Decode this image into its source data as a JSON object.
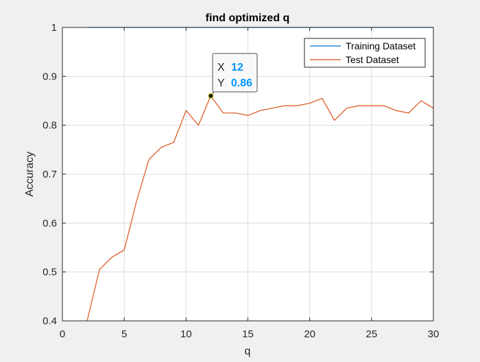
{
  "chart_data": {
    "type": "line",
    "title": "find optimized q",
    "xlabel": "q",
    "ylabel": "Accuracy",
    "xlim": [
      0,
      30
    ],
    "ylim": [
      0.4,
      1
    ],
    "xticks": [
      0,
      5,
      10,
      15,
      20,
      25,
      30
    ],
    "yticks": [
      0.4,
      0.5,
      0.6,
      0.7,
      0.8,
      0.9,
      1
    ],
    "xtick_labels": [
      "0",
      "5",
      "10",
      "15",
      "20",
      "25",
      "30"
    ],
    "ytick_labels": [
      "0.4",
      "0.5",
      "0.6",
      "0.7",
      "0.8",
      "0.9",
      "1"
    ],
    "grid": true,
    "legend_position": "top-right",
    "series": [
      {
        "name": "Training Dataset",
        "color": "#0072BD",
        "x": [
          2,
          3,
          4,
          5,
          6,
          7,
          8,
          9,
          10,
          11,
          12,
          13,
          14,
          15,
          16,
          17,
          18,
          19,
          20,
          21,
          22,
          23,
          24,
          25,
          26,
          27,
          28,
          29,
          30
        ],
        "y": [
          1,
          1,
          1,
          1,
          1,
          1,
          1,
          1,
          1,
          1,
          1,
          1,
          1,
          1,
          1,
          1,
          1,
          1,
          1,
          1,
          1,
          1,
          1,
          1,
          1,
          1,
          1,
          1,
          1
        ]
      },
      {
        "name": "Test Dataset",
        "color": "#D95319",
        "x": [
          2,
          3,
          4,
          5,
          6,
          7,
          8,
          9,
          10,
          11,
          12,
          13,
          14,
          15,
          16,
          17,
          18,
          19,
          20,
          21,
          22,
          23,
          24,
          25,
          26,
          27,
          28,
          29,
          30
        ],
        "y": [
          0.4,
          0.505,
          0.53,
          0.545,
          0.645,
          0.73,
          0.755,
          0.765,
          0.83,
          0.8,
          0.86,
          0.825,
          0.825,
          0.82,
          0.83,
          0.835,
          0.84,
          0.84,
          0.845,
          0.855,
          0.81,
          0.835,
          0.84,
          0.84,
          0.84,
          0.83,
          0.825,
          0.85,
          0.835
        ]
      }
    ],
    "datatip": {
      "x_label": "X",
      "y_label": "Y",
      "x_value": "12",
      "y_value": "0.86",
      "point": [
        12,
        0.86
      ],
      "value_color": "#0096FF"
    }
  }
}
